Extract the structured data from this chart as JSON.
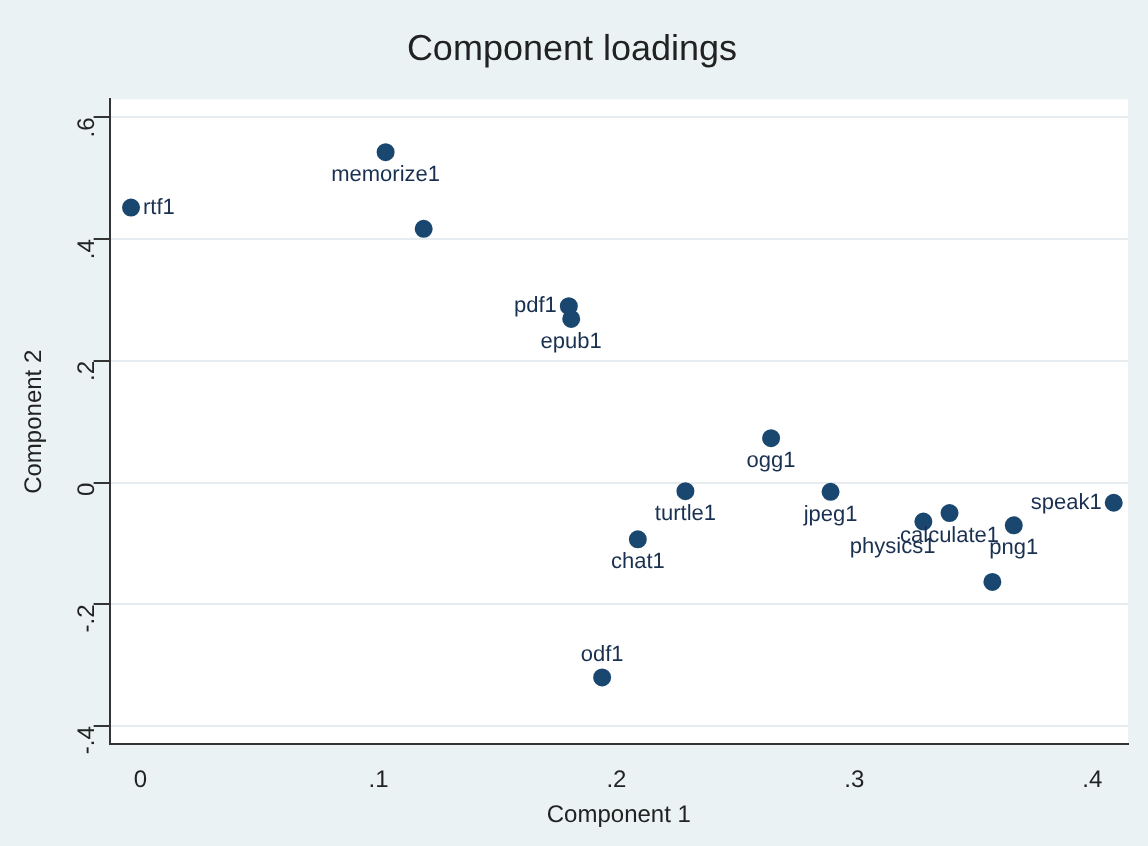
{
  "chart_data": {
    "type": "scatter",
    "title": "Component loadings",
    "xlabel": "Component 1",
    "ylabel": "Component 2",
    "x": [
      -0.004,
      0.103,
      0.119,
      0.18,
      0.181,
      0.265,
      0.229,
      0.209,
      0.29,
      0.329,
      0.34,
      0.367,
      0.358,
      0.409,
      0.194
    ],
    "series": [
      {
        "color": "#1a476f",
        "values": [
          0.452,
          0.543,
          0.417,
          0.29,
          0.269,
          0.073,
          -0.014,
          -0.093,
          -0.015,
          -0.064,
          -0.05,
          -0.07,
          -0.163,
          -0.033,
          -0.32
        ]
      }
    ],
    "xlim": [
      -0.013,
      0.415
    ],
    "ylim": [
      -0.43,
      0.63
    ],
    "xticks": [
      0,
      {
        "value": 0.1,
        "label": ".1"
      },
      {
        "value": 0.2,
        "label": ".2"
      },
      {
        "value": 0.3,
        "label": ".3"
      },
      {
        "value": 0.4,
        "label": ".4"
      }
    ],
    "yticks": [
      {
        "value": -0.4,
        "label": "-.4"
      },
      {
        "value": -0.2,
        "label": "-.2"
      },
      0,
      {
        "value": 0.2,
        "label": ".2"
      },
      {
        "value": 0.4,
        "label": ".4"
      },
      {
        "value": 0.6,
        "label": ".6"
      }
    ],
    "grid": "y",
    "legend": false,
    "marker": "circle",
    "annotations": [
      {
        "text": "rtf1",
        "x": -0.004,
        "y": 0.452
      },
      {
        "text": "memorize1",
        "x": 0.103,
        "y": 0.543
      },
      {
        "text": "pdf1",
        "x": 0.18,
        "y": 0.29
      },
      {
        "text": "epub1",
        "x": 0.181,
        "y": 0.269
      },
      {
        "text": "ogg1",
        "x": 0.265,
        "y": 0.073
      },
      {
        "text": "turtle1",
        "x": 0.229,
        "y": -0.014
      },
      {
        "text": "chat1",
        "x": 0.209,
        "y": -0.093
      },
      {
        "text": "jpeg1",
        "x": 0.29,
        "y": -0.015
      },
      {
        "text": "physics1",
        "x": 0.329,
        "y": -0.064
      },
      {
        "text": "calculate1",
        "x": 0.34,
        "y": -0.05
      },
      {
        "text": "png1",
        "x": 0.367,
        "y": -0.07
      },
      {
        "text": "speak1",
        "x": 0.409,
        "y": -0.033
      },
      {
        "text": "odf1",
        "x": 0.194,
        "y": -0.32
      }
    ]
  }
}
